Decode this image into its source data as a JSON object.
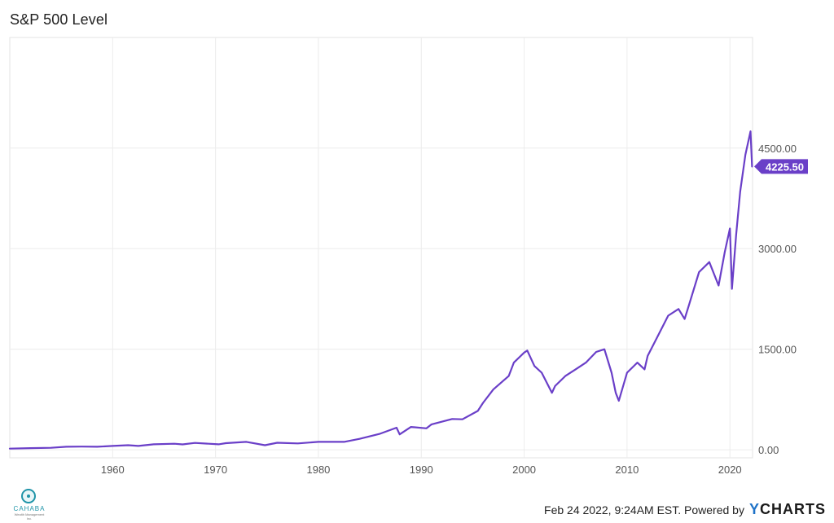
{
  "chart_data": {
    "type": "line",
    "title": "S&P 500 Level",
    "xlabel": "",
    "ylabel": "",
    "x_ticks": [
      "1960",
      "1970",
      "1980",
      "1990",
      "2000",
      "2010",
      "2020"
    ],
    "y_ticks": [
      "0.00",
      "1500.00",
      "3000.00",
      "4500.00"
    ],
    "xlim": [
      1950,
      2022.2
    ],
    "ylim": [
      -120,
      6150
    ],
    "grid": true,
    "line_color": "#6a3fc8",
    "last_value_label": "4225.50",
    "series": [
      {
        "x": [
          1950,
          1952,
          1954,
          1955.5,
          1957,
          1958.5,
          1960,
          1961.5,
          1962.5,
          1964,
          1966,
          1966.8,
          1968,
          1970.3,
          1971,
          1973,
          1974.8,
          1976,
          1978,
          1980,
          1982.5,
          1984,
          1986,
          1987.6,
          1987.9,
          1989,
          1990.5,
          1991,
          1993,
          1994,
          1995.5,
          1996,
          1997,
          1998.5,
          1999,
          2000,
          2000.3,
          2001,
          2001.7,
          2002.7,
          2003,
          2004,
          2005,
          2006,
          2007,
          2007.8,
          2008.5,
          2008.9,
          2009.2,
          2010,
          2011,
          2011.7,
          2012,
          2013,
          2014,
          2015,
          2015.6,
          2016,
          2017,
          2018,
          2018.9,
          2019.5,
          2020,
          2020.2,
          2020.6,
          2021,
          2021.5,
          2022,
          2022.15
        ],
        "y": [
          17,
          25,
          30,
          45,
          48,
          45,
          57,
          68,
          58,
          82,
          90,
          80,
          102,
          82,
          99,
          118,
          68,
          105,
          95,
          118,
          118,
          163,
          240,
          330,
          230,
          340,
          320,
          380,
          460,
          455,
          580,
          700,
          900,
          1100,
          1300,
          1450,
          1480,
          1250,
          1150,
          850,
          950,
          1100,
          1200,
          1300,
          1460,
          1500,
          1150,
          850,
          730,
          1150,
          1300,
          1200,
          1400,
          1700,
          2000,
          2100,
          1950,
          2150,
          2650,
          2800,
          2450,
          2950,
          3300,
          2400,
          3200,
          3850,
          4400,
          4750,
          4225.5
        ]
      }
    ],
    "footer": {
      "timestamp": "Feb 24 2022, 9:24AM EST. Powered by",
      "brand_prefix": "Y",
      "brand_rest": "CHARTS"
    },
    "logo": {
      "name": "CAHABA",
      "sub": "Wealth Management Inc."
    }
  }
}
